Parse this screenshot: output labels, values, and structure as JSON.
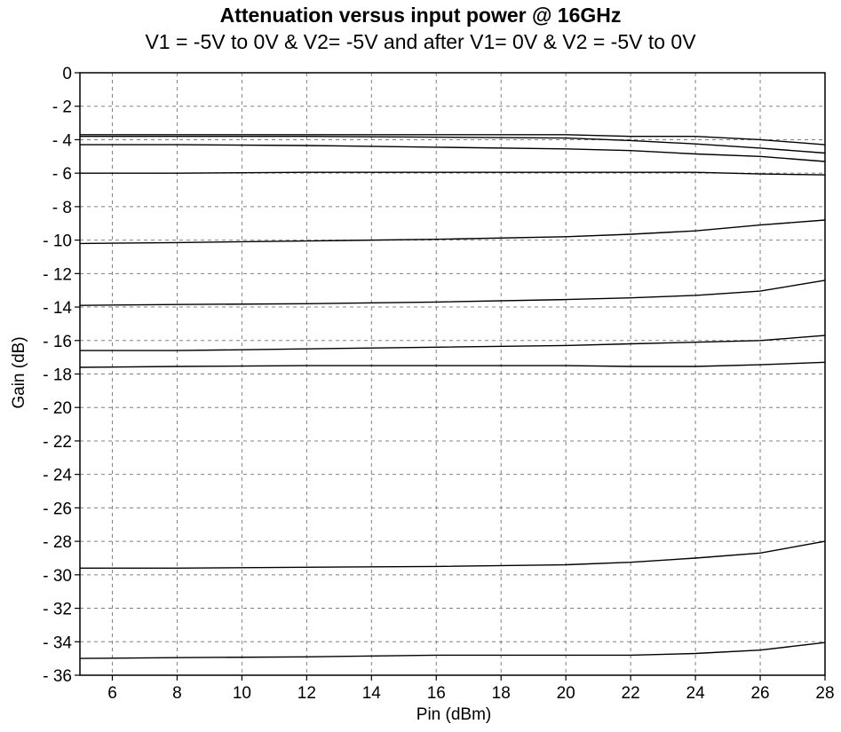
{
  "chart_data": {
    "type": "line",
    "title": "Attenuation versus input power @ 16GHz",
    "subtitle": "V1 = -5V to 0V & V2= -5V and after V1= 0V & V2 = -5V to 0V",
    "xlabel": "Pin (dBm)",
    "ylabel": "Gain (dB)",
    "xlim": [
      5,
      28
    ],
    "ylim": [
      -36,
      0
    ],
    "x_ticks": [
      6,
      8,
      10,
      12,
      14,
      16,
      18,
      20,
      22,
      24,
      26,
      28
    ],
    "x_tick_labels": [
      "6",
      "8",
      "10",
      "12",
      "14",
      "16",
      "18",
      "20",
      "22",
      "24",
      "26",
      "28"
    ],
    "y_ticks": [
      0,
      -2,
      -4,
      -6,
      -8,
      -10,
      -12,
      -14,
      -16,
      -18,
      -20,
      -22,
      -24,
      -26,
      -28,
      -30,
      -32,
      -34,
      -36
    ],
    "y_tick_labels": [
      "0",
      "- 2",
      "- 4",
      "- 6",
      "- 8",
      "- 10",
      "- 12",
      "- 14",
      "- 16",
      "- 18",
      "- 20",
      "- 22",
      "- 24",
      "- 26",
      "- 28",
      "- 30",
      "- 32",
      "- 34",
      "- 36"
    ],
    "grid": true,
    "line_color": "#000000",
    "grid_color": "#808080",
    "series": [
      {
        "x": [
          5,
          8,
          12,
          16,
          20,
          22,
          24,
          26,
          28
        ],
        "values": [
          -3.7,
          -3.7,
          -3.7,
          -3.7,
          -3.7,
          -3.8,
          -3.8,
          -4.0,
          -4.3
        ]
      },
      {
        "x": [
          5,
          8,
          12,
          16,
          20,
          22,
          24,
          26,
          28
        ],
        "values": [
          -3.8,
          -3.8,
          -3.8,
          -3.85,
          -3.9,
          -4.05,
          -4.25,
          -4.5,
          -4.8
        ]
      },
      {
        "x": [
          5,
          8,
          12,
          16,
          20,
          22,
          24,
          26,
          28
        ],
        "values": [
          -4.3,
          -4.3,
          -4.35,
          -4.45,
          -4.55,
          -4.65,
          -4.85,
          -5.0,
          -5.3
        ]
      },
      {
        "x": [
          5,
          8,
          12,
          16,
          20,
          22,
          24,
          26,
          28
        ],
        "values": [
          -6.0,
          -6.0,
          -5.95,
          -5.95,
          -5.95,
          -5.95,
          -5.95,
          -6.05,
          -6.1
        ]
      },
      {
        "x": [
          5,
          8,
          12,
          16,
          20,
          22,
          24,
          26,
          28
        ],
        "values": [
          -10.2,
          -10.15,
          -10.05,
          -9.95,
          -9.8,
          -9.65,
          -9.45,
          -9.1,
          -8.8
        ]
      },
      {
        "x": [
          5,
          8,
          12,
          16,
          20,
          22,
          24,
          26,
          28
        ],
        "values": [
          -13.9,
          -13.85,
          -13.8,
          -13.7,
          -13.55,
          -13.45,
          -13.3,
          -13.05,
          -12.4
        ]
      },
      {
        "x": [
          5,
          8,
          12,
          16,
          20,
          22,
          24,
          26,
          28
        ],
        "values": [
          -16.6,
          -16.6,
          -16.5,
          -16.4,
          -16.3,
          -16.2,
          -16.1,
          -16.0,
          -15.7
        ]
      },
      {
        "x": [
          5,
          8,
          12,
          16,
          20,
          22,
          24,
          26,
          28
        ],
        "values": [
          -17.6,
          -17.55,
          -17.5,
          -17.5,
          -17.5,
          -17.55,
          -17.55,
          -17.45,
          -17.3
        ]
      },
      {
        "x": [
          5,
          8,
          12,
          16,
          20,
          22,
          24,
          26,
          28
        ],
        "values": [
          -29.6,
          -29.6,
          -29.55,
          -29.5,
          -29.4,
          -29.25,
          -29.0,
          -28.7,
          -28.0
        ]
      },
      {
        "x": [
          5,
          8,
          12,
          16,
          20,
          22,
          24,
          26,
          28
        ],
        "values": [
          -35.0,
          -34.95,
          -34.9,
          -34.8,
          -34.8,
          -34.8,
          -34.7,
          -34.5,
          -34.05
        ]
      }
    ]
  }
}
